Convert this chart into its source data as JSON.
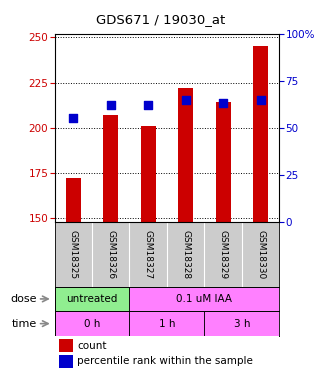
{
  "title": "GDS671 / 19030_at",
  "samples": [
    "GSM18325",
    "GSM18326",
    "GSM18327",
    "GSM18328",
    "GSM18329",
    "GSM18330"
  ],
  "red_values": [
    172,
    207,
    201,
    222,
    214,
    245
  ],
  "blue_values": [
    55,
    62,
    62,
    65,
    63,
    65
  ],
  "ylim_left": [
    148,
    252
  ],
  "ylim_right": [
    0,
    100
  ],
  "left_ticks": [
    150,
    175,
    200,
    225,
    250
  ],
  "right_ticks": [
    0,
    25,
    50,
    75,
    100
  ],
  "right_tick_labels": [
    "0",
    "25",
    "50",
    "75",
    "100%"
  ],
  "dose_groups": [
    {
      "label": "untreated",
      "start": 0,
      "end": 2,
      "color": "#90EE90"
    },
    {
      "label": "0.1 uM IAA",
      "start": 2,
      "end": 6,
      "color": "#FF80FF"
    }
  ],
  "time_groups": [
    {
      "label": "0 h",
      "start": 0,
      "end": 2,
      "color": "#FF80FF"
    },
    {
      "label": "1 h",
      "start": 2,
      "end": 4,
      "color": "#FF80FF"
    },
    {
      "label": "3 h",
      "start": 4,
      "end": 6,
      "color": "#FF80FF"
    }
  ],
  "bar_color": "#CC0000",
  "dot_color": "#0000CC",
  "background_color": "#FFFFFF",
  "label_color_left": "#CC0000",
  "label_color_right": "#0000CC",
  "bar_width": 0.4,
  "dot_size": 30,
  "legend_items": [
    "count",
    "percentile rank within the sample"
  ]
}
